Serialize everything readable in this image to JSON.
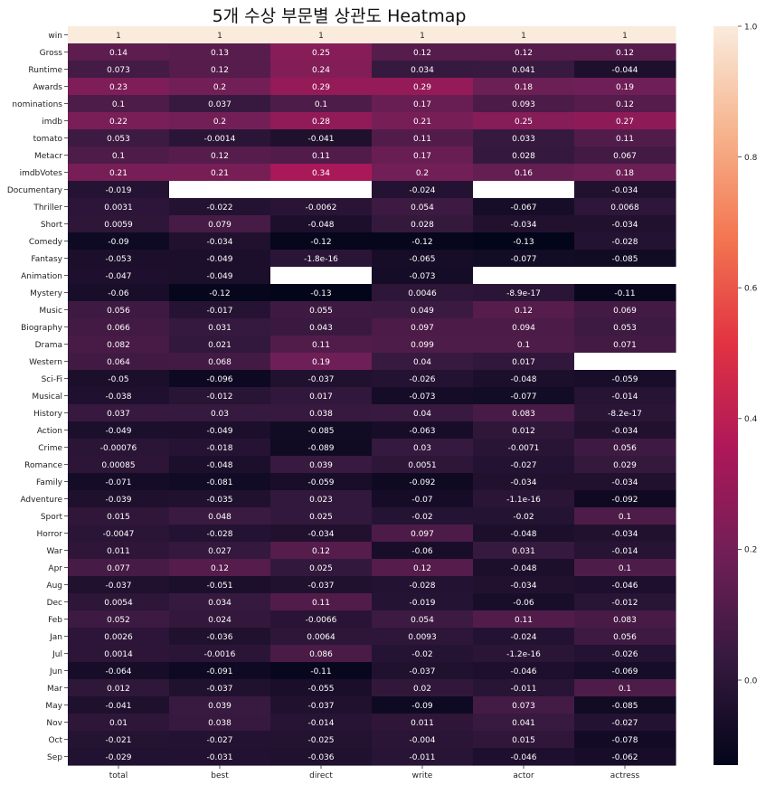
{
  "chart_data": {
    "type": "heatmap",
    "title": "5개 수상 부문별 상관도 Heatmap",
    "columns": [
      "total",
      "best",
      "direct",
      "write",
      "actor",
      "actress"
    ],
    "rows": [
      "win",
      "Gross",
      "Runtime",
      "Awards",
      "nominations",
      "imdb",
      "tomato",
      "Metacr",
      "imdbVotes",
      "Documentary",
      "Thriller",
      "Short",
      "Comedy",
      "Fantasy",
      "Animation",
      "Mystery",
      "Music",
      "Biography",
      "Drama",
      "Western",
      "Sci-Fi",
      "Musical",
      "History",
      "Action",
      "Crime",
      "Romance",
      "Family",
      "Adventure",
      "Sport",
      "Horror",
      "War",
      "Apr",
      "Aug",
      "Dec",
      "Feb",
      "Jan",
      "Jul",
      "Jun",
      "Mar",
      "May",
      "Nov",
      "Oct",
      "Sep"
    ],
    "values": [
      [
        1,
        1,
        1,
        1,
        1,
        1
      ],
      [
        0.14,
        0.13,
        0.25,
        0.12,
        0.12,
        0.12
      ],
      [
        0.073,
        0.12,
        0.24,
        0.034,
        0.041,
        -0.044
      ],
      [
        0.23,
        0.2,
        0.29,
        0.29,
        0.18,
        0.19
      ],
      [
        0.1,
        0.037,
        0.1,
        0.17,
        0.093,
        0.12
      ],
      [
        0.22,
        0.2,
        0.28,
        0.21,
        0.25,
        0.27
      ],
      [
        0.053,
        -0.0014,
        -0.041,
        0.11,
        0.033,
        0.11
      ],
      [
        0.1,
        0.12,
        0.11,
        0.17,
        0.028,
        0.067
      ],
      [
        0.21,
        0.21,
        0.34,
        0.2,
        0.16,
        0.18
      ],
      [
        -0.019,
        null,
        null,
        -0.024,
        null,
        -0.034
      ],
      [
        0.0031,
        -0.022,
        -0.0062,
        0.054,
        -0.067,
        0.0068
      ],
      [
        0.0059,
        0.079,
        -0.048,
        0.028,
        -0.034,
        -0.034
      ],
      [
        -0.09,
        -0.034,
        -0.12,
        -0.12,
        -0.13,
        -0.028
      ],
      [
        -0.053,
        -0.049,
        -1.8e-16,
        -0.065,
        -0.077,
        -0.085
      ],
      [
        -0.047,
        -0.049,
        null,
        -0.073,
        null,
        null
      ],
      [
        -0.06,
        -0.12,
        -0.13,
        0.0046,
        -8.9e-17,
        -0.11
      ],
      [
        0.056,
        -0.017,
        0.055,
        0.049,
        0.12,
        0.069
      ],
      [
        0.066,
        0.031,
        0.043,
        0.097,
        0.094,
        0.053
      ],
      [
        0.082,
        0.021,
        0.11,
        0.099,
        0.1,
        0.071
      ],
      [
        0.064,
        0.068,
        0.19,
        0.04,
        0.017,
        null
      ],
      [
        -0.05,
        -0.096,
        -0.037,
        -0.026,
        -0.048,
        -0.059
      ],
      [
        -0.038,
        -0.012,
        0.017,
        -0.073,
        -0.077,
        -0.014
      ],
      [
        0.037,
        0.03,
        0.038,
        0.04,
        0.083,
        -8.2e-17
      ],
      [
        -0.049,
        -0.049,
        -0.085,
        -0.063,
        0.012,
        -0.034
      ],
      [
        -0.00076,
        -0.018,
        -0.089,
        0.03,
        -0.0071,
        0.056
      ],
      [
        0.00085,
        -0.048,
        0.039,
        0.0051,
        -0.027,
        0.029
      ],
      [
        -0.071,
        -0.081,
        -0.059,
        -0.092,
        -0.034,
        -0.034
      ],
      [
        -0.039,
        -0.035,
        0.023,
        -0.07,
        -1.1e-16,
        -0.092
      ],
      [
        0.015,
        0.048,
        0.025,
        -0.02,
        -0.02,
        0.1
      ],
      [
        -0.0047,
        -0.028,
        -0.034,
        0.097,
        -0.048,
        -0.034
      ],
      [
        0.011,
        0.027,
        0.12,
        -0.06,
        0.031,
        -0.014
      ],
      [
        0.077,
        0.12,
        0.025,
        0.12,
        -0.048,
        0.1
      ],
      [
        -0.037,
        -0.051,
        -0.037,
        -0.028,
        -0.034,
        -0.046
      ],
      [
        0.0054,
        0.034,
        0.11,
        -0.019,
        -0.06,
        -0.012
      ],
      [
        0.052,
        0.024,
        -0.0066,
        0.054,
        0.11,
        0.083
      ],
      [
        0.0026,
        -0.036,
        0.0064,
        0.0093,
        -0.024,
        0.056
      ],
      [
        0.0014,
        -0.0016,
        0.086,
        -0.02,
        -1.2e-16,
        -0.026
      ],
      [
        -0.064,
        -0.091,
        -0.11,
        -0.037,
        -0.046,
        -0.069
      ],
      [
        0.012,
        -0.037,
        -0.055,
        0.02,
        -0.011,
        0.1
      ],
      [
        -0.041,
        0.039,
        -0.037,
        -0.09,
        0.073,
        -0.085
      ],
      [
        0.01,
        0.038,
        -0.014,
        0.011,
        0.041,
        -0.027
      ],
      [
        -0.021,
        -0.027,
        -0.025,
        -0.004,
        0.015,
        -0.078
      ],
      [
        -0.029,
        -0.031,
        -0.036,
        -0.011,
        -0.046,
        -0.062
      ]
    ],
    "labels": [
      [
        "1",
        "1",
        "1",
        "1",
        "1",
        "1"
      ],
      [
        "0.14",
        "0.13",
        "0.25",
        "0.12",
        "0.12",
        "0.12"
      ],
      [
        "0.073",
        "0.12",
        "0.24",
        "0.034",
        "0.041",
        "-0.044"
      ],
      [
        "0.23",
        "0.2",
        "0.29",
        "0.29",
        "0.18",
        "0.19"
      ],
      [
        "0.1",
        "0.037",
        "0.1",
        "0.17",
        "0.093",
        "0.12"
      ],
      [
        "0.22",
        "0.2",
        "0.28",
        "0.21",
        "0.25",
        "0.27"
      ],
      [
        "0.053",
        "-0.0014",
        "-0.041",
        "0.11",
        "0.033",
        "0.11"
      ],
      [
        "0.1",
        "0.12",
        "0.11",
        "0.17",
        "0.028",
        "0.067"
      ],
      [
        "0.21",
        "0.21",
        "0.34",
        "0.2",
        "0.16",
        "0.18"
      ],
      [
        "-0.019",
        "",
        "",
        "-0.024",
        "",
        "-0.034"
      ],
      [
        "0.0031",
        "-0.022",
        "-0.0062",
        "0.054",
        "-0.067",
        "0.0068"
      ],
      [
        "0.0059",
        "0.079",
        "-0.048",
        "0.028",
        "-0.034",
        "-0.034"
      ],
      [
        "-0.09",
        "-0.034",
        "-0.12",
        "-0.12",
        "-0.13",
        "-0.028"
      ],
      [
        "-0.053",
        "-0.049",
        "-1.8e-16",
        "-0.065",
        "-0.077",
        "-0.085"
      ],
      [
        "-0.047",
        "-0.049",
        "",
        "-0.073",
        "",
        ""
      ],
      [
        "-0.06",
        "-0.12",
        "-0.13",
        "0.0046",
        "-8.9e-17",
        "-0.11"
      ],
      [
        "0.056",
        "-0.017",
        "0.055",
        "0.049",
        "0.12",
        "0.069"
      ],
      [
        "0.066",
        "0.031",
        "0.043",
        "0.097",
        "0.094",
        "0.053"
      ],
      [
        "0.082",
        "0.021",
        "0.11",
        "0.099",
        "0.1",
        "0.071"
      ],
      [
        "0.064",
        "0.068",
        "0.19",
        "0.04",
        "0.017",
        ""
      ],
      [
        "-0.05",
        "-0.096",
        "-0.037",
        "-0.026",
        "-0.048",
        "-0.059"
      ],
      [
        "-0.038",
        "-0.012",
        "0.017",
        "-0.073",
        "-0.077",
        "-0.014"
      ],
      [
        "0.037",
        "0.03",
        "0.038",
        "0.04",
        "0.083",
        "-8.2e-17"
      ],
      [
        "-0.049",
        "-0.049",
        "-0.085",
        "-0.063",
        "0.012",
        "-0.034"
      ],
      [
        "-0.00076",
        "-0.018",
        "-0.089",
        "0.03",
        "-0.0071",
        "0.056"
      ],
      [
        "0.00085",
        "-0.048",
        "0.039",
        "0.0051",
        "-0.027",
        "0.029"
      ],
      [
        "-0.071",
        "-0.081",
        "-0.059",
        "-0.092",
        "-0.034",
        "-0.034"
      ],
      [
        "-0.039",
        "-0.035",
        "0.023",
        "-0.07",
        "-1.1e-16",
        "-0.092"
      ],
      [
        "0.015",
        "0.048",
        "0.025",
        "-0.02",
        "-0.02",
        "0.1"
      ],
      [
        "-0.0047",
        "-0.028",
        "-0.034",
        "0.097",
        "-0.048",
        "-0.034"
      ],
      [
        "0.011",
        "0.027",
        "0.12",
        "-0.06",
        "0.031",
        "-0.014"
      ],
      [
        "0.077",
        "0.12",
        "0.025",
        "0.12",
        "-0.048",
        "0.1"
      ],
      [
        "-0.037",
        "-0.051",
        "-0.037",
        "-0.028",
        "-0.034",
        "-0.046"
      ],
      [
        "0.0054",
        "0.034",
        "0.11",
        "-0.019",
        "-0.06",
        "-0.012"
      ],
      [
        "0.052",
        "0.024",
        "-0.0066",
        "0.054",
        "0.11",
        "0.083"
      ],
      [
        "0.0026",
        "-0.036",
        "0.0064",
        "0.0093",
        "-0.024",
        "0.056"
      ],
      [
        "0.0014",
        "-0.0016",
        "0.086",
        "-0.02",
        "-1.2e-16",
        "-0.026"
      ],
      [
        "-0.064",
        "-0.091",
        "-0.11",
        "-0.037",
        "-0.046",
        "-0.069"
      ],
      [
        "0.012",
        "-0.037",
        "-0.055",
        "0.02",
        "-0.011",
        "0.1"
      ],
      [
        "-0.041",
        "0.039",
        "-0.037",
        "-0.09",
        "0.073",
        "-0.085"
      ],
      [
        "0.01",
        "0.038",
        "-0.014",
        "0.011",
        "0.041",
        "-0.027"
      ],
      [
        "-0.021",
        "-0.027",
        "-0.025",
        "-0.004",
        "0.015",
        "-0.078"
      ],
      [
        "-0.029",
        "-0.031",
        "-0.036",
        "-0.011",
        "-0.046",
        "-0.062"
      ]
    ],
    "colorbar": {
      "vmin": -0.13,
      "vmax": 1.0,
      "ticks": [
        0.0,
        0.2,
        0.4,
        0.6,
        0.8,
        1.0
      ],
      "tick_labels": [
        "0.0",
        "0.2",
        "0.4",
        "0.6",
        "0.8",
        "1.0"
      ],
      "colormap": "rocket",
      "stops": [
        "#03051a",
        "#35193e",
        "#701f57",
        "#ae1759",
        "#e13342",
        "#f37651",
        "#f6b48e",
        "#faebdd"
      ]
    },
    "missing_color": "#ffffff"
  }
}
